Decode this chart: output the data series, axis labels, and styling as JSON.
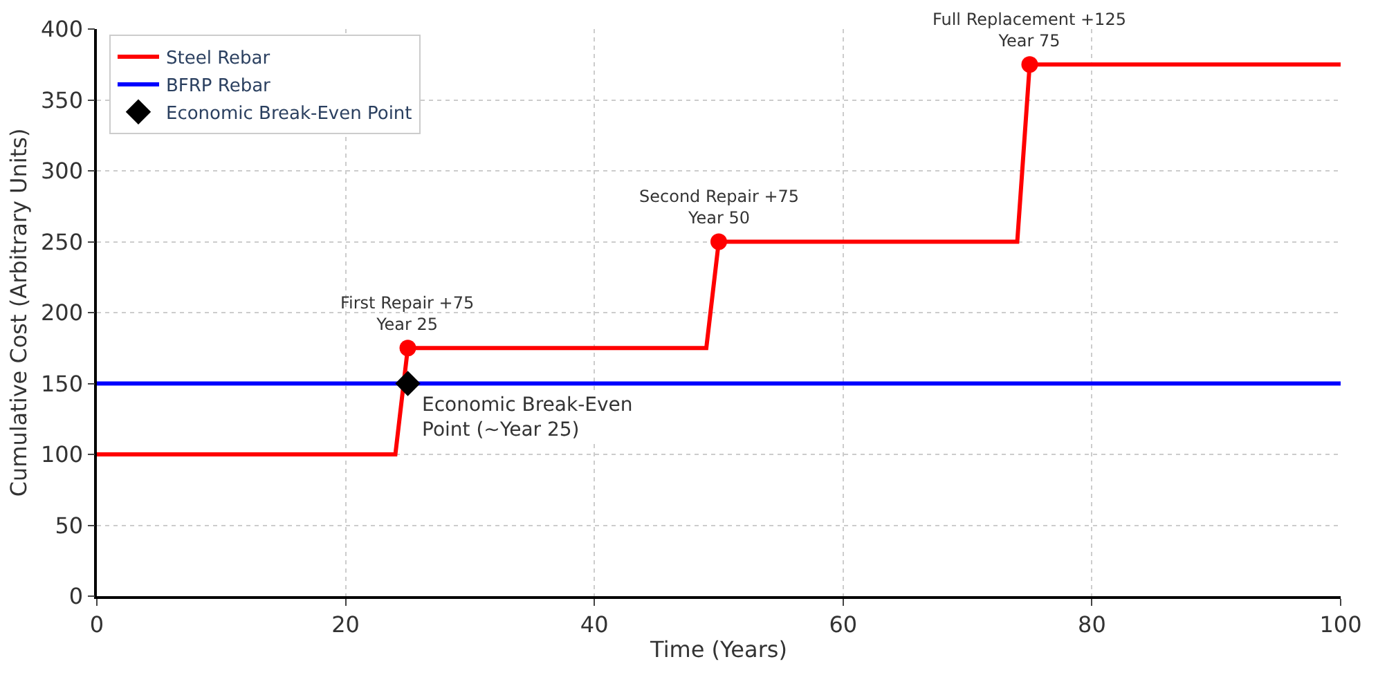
{
  "chart_data": {
    "type": "line",
    "xlabel": "Time (Years)",
    "ylabel": "Cumulative Cost (Arbitrary Units)",
    "xlim": [
      0,
      100
    ],
    "xticks": [
      0,
      20,
      40,
      60,
      80,
      100
    ],
    "ylim": [
      0,
      400
    ],
    "yticks": [
      0,
      50,
      100,
      150,
      200,
      250,
      300,
      350,
      400
    ],
    "grid": true,
    "legend": "top left",
    "series": [
      {
        "name": "Steel Rebar",
        "color": "#ff0000",
        "marker": "none",
        "x": [
          0,
          24,
          25,
          49,
          50,
          74,
          75,
          100
        ],
        "values": [
          100,
          100,
          175,
          175,
          250,
          250,
          375,
          375
        ]
      },
      {
        "name": "BFRP Rebar",
        "color": "#0000ff",
        "marker": "none",
        "x": [
          0,
          100
        ],
        "values": [
          150,
          150
        ]
      },
      {
        "type": "scatter",
        "color": "#ff0000",
        "marker": "circle",
        "x": [
          25,
          50,
          75
        ],
        "values": [
          175,
          250,
          375
        ]
      },
      {
        "name": "Economic Break-Even Point",
        "type": "scatter",
        "color": "#000000",
        "marker": "diamond",
        "x": [
          25
        ],
        "values": [
          150
        ]
      }
    ],
    "annotations": [
      {
        "text": "First Repair +75\nYear 25",
        "x": 25,
        "y": 175
      },
      {
        "text": "Second Repair +75\nYear 50",
        "x": 50,
        "y": 250
      },
      {
        "text": "Full Replacement +125\nYear 75",
        "x": 75,
        "y": 375
      },
      {
        "text": "Economic Break-Even\nPoint (~Year 25)",
        "x": 25,
        "y": 150
      }
    ]
  }
}
